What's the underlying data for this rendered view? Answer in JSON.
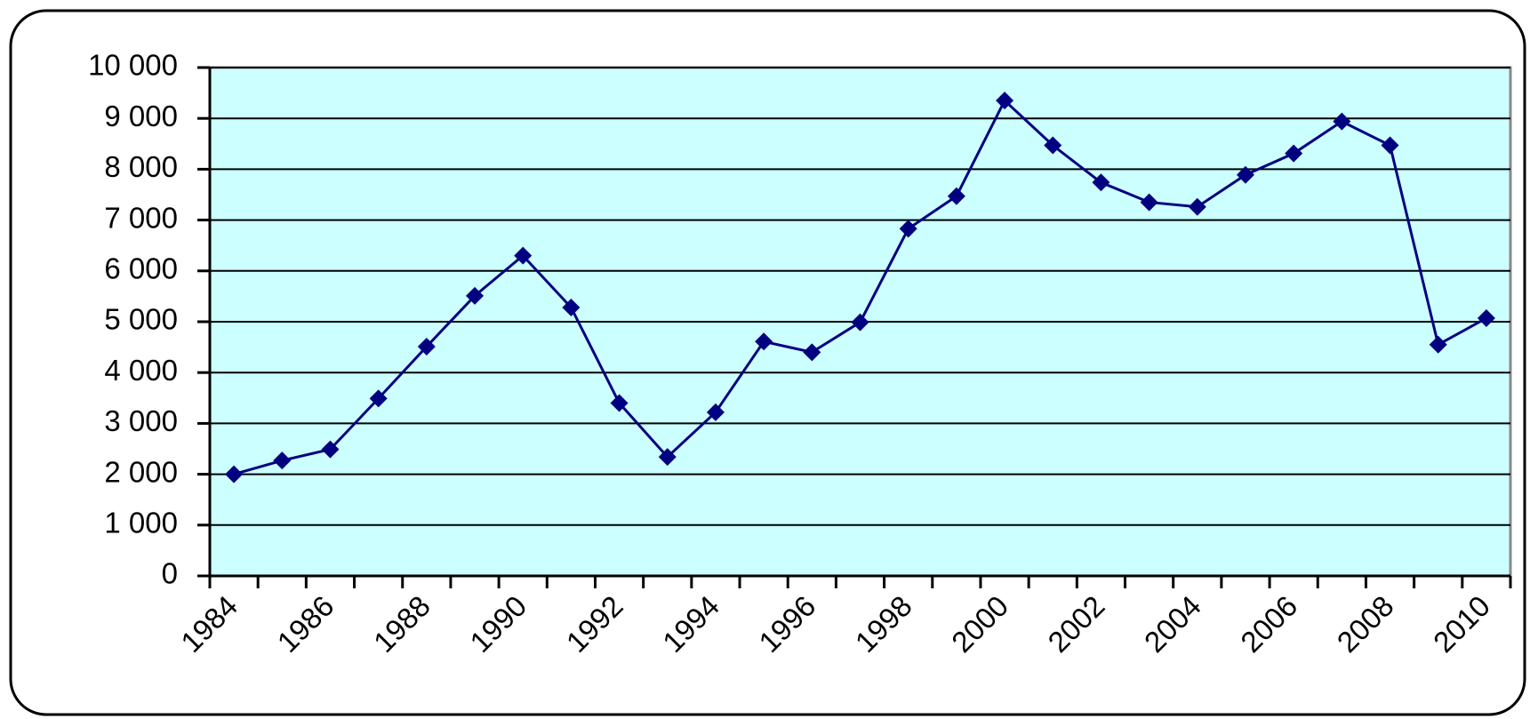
{
  "chart_data": {
    "type": "line",
    "categories": [
      "1984",
      null,
      "1986",
      null,
      "1988",
      null,
      "1990",
      null,
      "1992",
      null,
      "1994",
      null,
      "1996",
      null,
      "1998",
      null,
      "2000",
      null,
      "2002",
      null,
      "2004",
      null,
      "2006",
      null,
      "2008",
      null,
      "2010"
    ],
    "series": [
      {
        "color": "#000080",
        "values": [
          2000,
          2270,
          2490,
          3490,
          4510,
          5510,
          6300,
          5280,
          3400,
          2340,
          3220,
          4610,
          4400,
          4990,
          6830,
          7470,
          9350,
          8470,
          7740,
          7350,
          7260,
          7890,
          8310,
          8940,
          8470,
          4550,
          5070
        ]
      }
    ],
    "ylim": [
      0,
      10000
    ],
    "yticks": [
      0,
      {
        "value": 1000,
        "label": "1 000"
      },
      {
        "value": 2000,
        "label": "2 000"
      },
      {
        "value": 3000,
        "label": "3 000"
      },
      {
        "value": 4000,
        "label": "4 000"
      },
      {
        "value": 5000,
        "label": "5 000"
      },
      {
        "value": 6000,
        "label": "6 000"
      },
      {
        "value": 7000,
        "label": "7 000"
      },
      {
        "value": 8000,
        "label": "8 000"
      },
      {
        "value": 9000,
        "label": "9 000"
      },
      {
        "value": 10000,
        "label": "10 000"
      }
    ],
    "grid": true,
    "plot_background": "#ccffff"
  }
}
